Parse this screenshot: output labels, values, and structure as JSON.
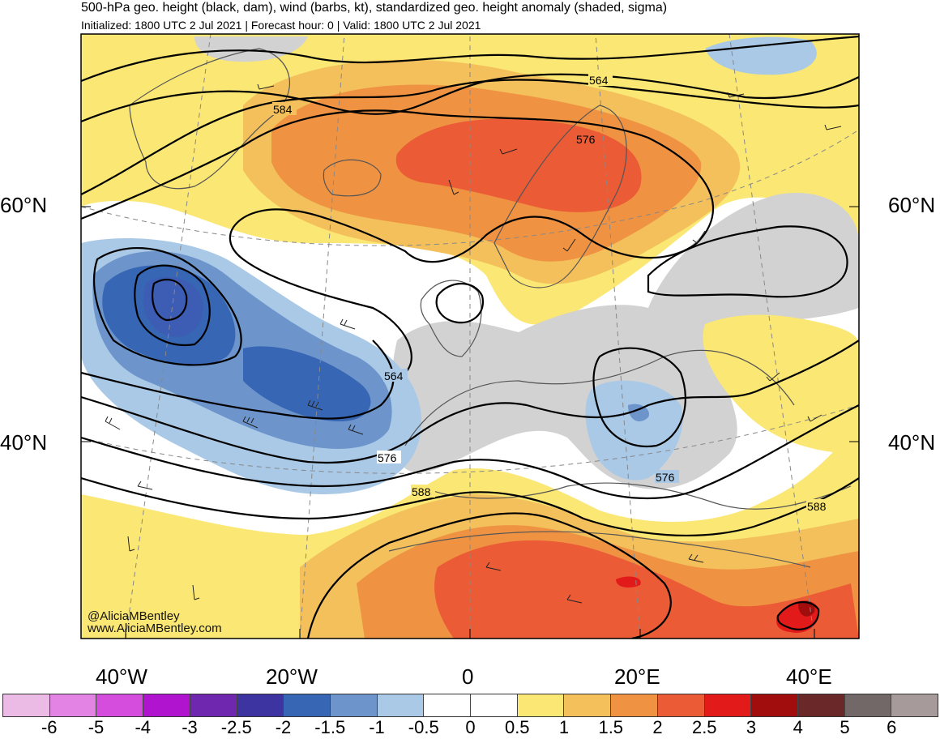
{
  "header": {
    "title": "500-hPa geo. height (black, dam), wind (barbs, kt), standardized geo. height anomaly (shaded, sigma)",
    "subtitle": "Initialized: 1800 UTC 2 Jul 2021 | Forecast hour: 0 | Valid: 1800 UTC 2 Jul 2021"
  },
  "map": {
    "lat_labels": [
      "60°N",
      "40°N"
    ],
    "lon_labels": [
      "40°W",
      "20°W",
      "0",
      "20°E",
      "40°E"
    ],
    "contour_labels": [
      "564",
      "576",
      "564",
      "576",
      "576",
      "588",
      "588",
      "584"
    ],
    "credits": [
      "@AliciaMBentley",
      "www.AliciaMBentley.com"
    ]
  },
  "colorbar": {
    "labels": [
      "-6",
      "-5",
      "-4",
      "-3",
      "-2.5",
      "-2",
      "-1.5",
      "-1",
      "-0.5",
      "0",
      "0.5",
      "1",
      "1.5",
      "2",
      "2.5",
      "3",
      "4",
      "5",
      "6"
    ],
    "colors": [
      "#ebbbe6",
      "#e383e3",
      "#d44ddd",
      "#b014cf",
      "#6e27ae",
      "#3d33a1",
      "#3766b4",
      "#6d95cc",
      "#a9c9e6",
      "#ffffff",
      "#ffffff",
      "#fbe773",
      "#f3c05c",
      "#ef9343",
      "#eb5b36",
      "#e21a1a",
      "#a10c0c",
      "#6b2828",
      "#726868",
      "#a79a9a"
    ]
  }
}
